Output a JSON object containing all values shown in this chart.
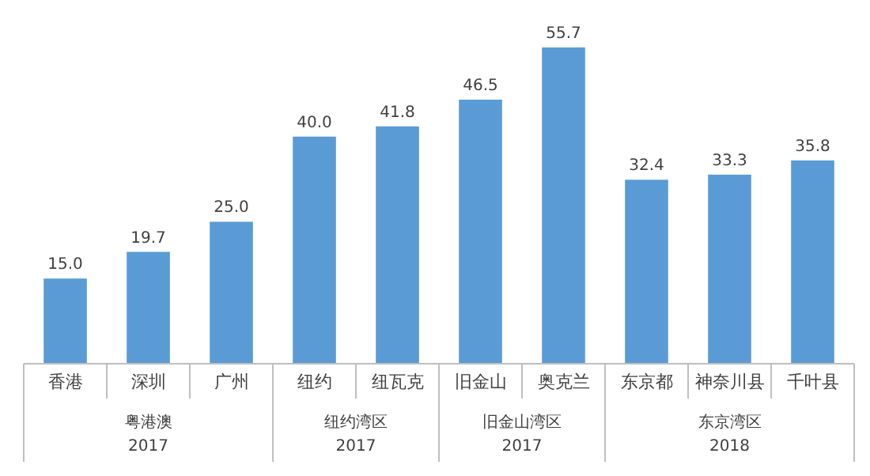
{
  "chart_data": {
    "type": "bar",
    "categories": [
      "香港",
      "深圳",
      "广州",
      "纽约",
      "纽瓦克",
      "旧金山",
      "奥克兰",
      "东京都",
      "神奈川县",
      "千叶县"
    ],
    "values": [
      15.0,
      19.7,
      25.0,
      40.0,
      41.8,
      46.5,
      55.7,
      32.4,
      33.3,
      35.8
    ],
    "color": "#5b9bd5",
    "value_labels": [
      "15.0",
      "19.7",
      "25.0",
      "40.0",
      "41.8",
      "46.5",
      "55.7",
      "32.4",
      "33.3",
      "35.8"
    ],
    "annotations": [
      "粤港澳\n2017",
      "纽约湾区\n2017",
      "旧金山湾区\n2017",
      "东京湾区\n2018"
    ]
  }
}
